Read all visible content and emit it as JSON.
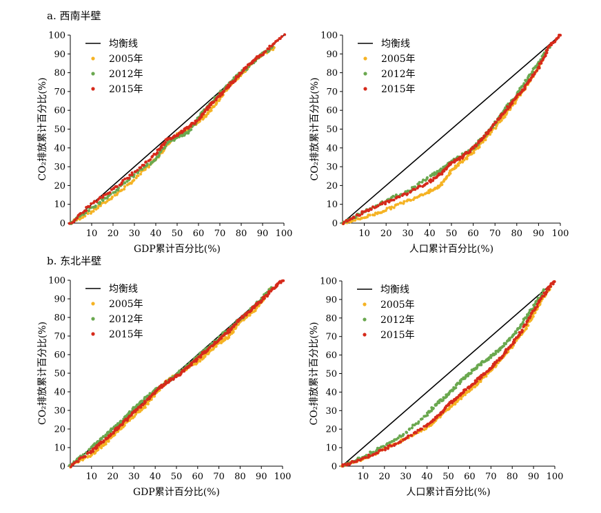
{
  "sections": [
    {
      "title": "a. 西南半壁"
    },
    {
      "title": "b. 东北半壁"
    }
  ],
  "colors": {
    "equality": "#000000",
    "y2005": "#f5b324",
    "y2012": "#6aa84f",
    "y2015": "#d62a1b"
  },
  "chart_data": [
    {
      "type": "scatter",
      "panel": "a-left",
      "xlabel": "GDP累计百分比(%)",
      "ylabel": "CO₂排放累计百分比(%)",
      "xlim": [
        0,
        100
      ],
      "ylim": [
        0,
        100
      ],
      "xticks": [
        "10",
        "20",
        "30",
        "40",
        "50",
        "60",
        "70",
        "80",
        "90",
        "100"
      ],
      "yticks": [
        "0",
        "10",
        "20",
        "30",
        "40",
        "50",
        "60",
        "70",
        "80",
        "90",
        "100"
      ],
      "legend": [
        "均衡线",
        "2005年",
        "2012年",
        "2015年"
      ],
      "series": [
        {
          "name": "均衡线",
          "x": [
            0,
            100
          ],
          "y": [
            0,
            100
          ]
        },
        {
          "name": "2005年",
          "x": [
            0,
            10,
            20,
            30,
            40,
            45,
            50,
            55,
            60,
            65,
            70,
            75,
            80,
            85,
            90,
            95
          ],
          "y": [
            0,
            6,
            14,
            23,
            34,
            41,
            47,
            50,
            54,
            59,
            66,
            74,
            79,
            85,
            90,
            93
          ]
        },
        {
          "name": "2012年",
          "x": [
            0,
            10,
            20,
            30,
            40,
            45,
            50,
            55,
            60,
            65,
            70,
            75,
            80,
            85,
            90,
            95
          ],
          "y": [
            0,
            8,
            16,
            26,
            34,
            42,
            46,
            48,
            56,
            63,
            69,
            75,
            80,
            85,
            90,
            94
          ]
        },
        {
          "name": "2015年",
          "x": [
            0,
            10,
            20,
            30,
            40,
            45,
            50,
            55,
            60,
            65,
            70,
            75,
            80,
            85,
            90,
            100
          ],
          "y": [
            0,
            10,
            18,
            27,
            37,
            44,
            47,
            51,
            55,
            62,
            68,
            74,
            80,
            86,
            90,
            100
          ]
        }
      ]
    },
    {
      "type": "scatter",
      "panel": "a-right",
      "xlabel": "人口累计百分比(%)",
      "ylabel": "CO₂排放累计百分比(%)",
      "xlim": [
        0,
        100
      ],
      "ylim": [
        0,
        100
      ],
      "xticks": [
        "10",
        "20",
        "30",
        "40",
        "50",
        "60",
        "70",
        "80",
        "90",
        "100"
      ],
      "yticks": [
        "0",
        "10",
        "20",
        "30",
        "40",
        "50",
        "60",
        "70",
        "80",
        "90",
        "100"
      ],
      "legend": [
        "均衡线",
        "2005年",
        "2012年",
        "2015年"
      ],
      "series": [
        {
          "name": "均衡线",
          "x": [
            0,
            100
          ],
          "y": [
            0,
            100
          ]
        },
        {
          "name": "2005年",
          "x": [
            0,
            10,
            20,
            30,
            40,
            45,
            50,
            55,
            60,
            65,
            70,
            75,
            80,
            85,
            90,
            95
          ],
          "y": [
            0,
            3,
            7,
            12,
            17,
            20,
            28,
            33,
            38,
            44,
            51,
            58,
            66,
            74,
            83,
            94
          ]
        },
        {
          "name": "2012年",
          "x": [
            0,
            10,
            20,
            30,
            40,
            45,
            50,
            55,
            60,
            65,
            70,
            75,
            80,
            85,
            90,
            95
          ],
          "y": [
            0,
            6,
            12,
            17,
            25,
            28,
            33,
            36,
            40,
            46,
            53,
            61,
            68,
            77,
            85,
            94
          ]
        },
        {
          "name": "2015年",
          "x": [
            0,
            10,
            20,
            30,
            40,
            45,
            50,
            55,
            60,
            65,
            70,
            75,
            80,
            85,
            90,
            95,
            100
          ],
          "y": [
            0,
            6,
            11,
            16,
            22,
            26,
            32,
            35,
            40,
            46,
            53,
            60,
            67,
            74,
            83,
            94,
            100
          ]
        }
      ]
    },
    {
      "type": "scatter",
      "panel": "b-left",
      "xlabel": "GDP累计百分比(%)",
      "ylabel": "CO₂排放累计百分比(%)",
      "xlim": [
        0,
        100
      ],
      "ylim": [
        0,
        100
      ],
      "xticks": [
        "10",
        "20",
        "30",
        "40",
        "50",
        "60",
        "70",
        "80",
        "90",
        "100"
      ],
      "yticks": [
        "0",
        "10",
        "20",
        "30",
        "40",
        "50",
        "60",
        "70",
        "80",
        "90",
        "100"
      ],
      "legend": [
        "均衡线",
        "2005年",
        "2012年",
        "2015年"
      ],
      "series": [
        {
          "name": "均衡线",
          "x": [
            0,
            100
          ],
          "y": [
            0,
            100
          ]
        },
        {
          "name": "2005年",
          "x": [
            0,
            10,
            15,
            20,
            25,
            30,
            35,
            40,
            45,
            50,
            55,
            60,
            65,
            70,
            75,
            80,
            85,
            90,
            95
          ],
          "y": [
            0,
            6,
            11,
            16,
            22,
            27,
            32,
            39,
            45,
            49,
            53,
            56,
            61,
            66,
            70,
            78,
            82,
            88,
            96
          ]
        },
        {
          "name": "2012年",
          "x": [
            0,
            10,
            15,
            20,
            25,
            30,
            35,
            40,
            45,
            50,
            55,
            60,
            65,
            70,
            75,
            80,
            85,
            90,
            95
          ],
          "y": [
            0,
            10,
            15,
            20,
            25,
            31,
            36,
            41,
            45,
            49,
            54,
            59,
            64,
            69,
            74,
            79,
            84,
            90,
            96
          ]
        },
        {
          "name": "2015年",
          "x": [
            0,
            10,
            15,
            20,
            25,
            30,
            35,
            40,
            45,
            50,
            55,
            60,
            65,
            70,
            75,
            80,
            85,
            90,
            95,
            100
          ],
          "y": [
            0,
            8,
            13,
            18,
            23,
            29,
            34,
            40,
            45,
            48,
            53,
            58,
            63,
            68,
            73,
            79,
            84,
            89,
            95,
            100
          ]
        }
      ]
    },
    {
      "type": "scatter",
      "panel": "b-right",
      "xlabel": "人口累计百分比(%)",
      "ylabel": "CO₂排放累计百分比(%)",
      "xlim": [
        0,
        100
      ],
      "ylim": [
        0,
        100
      ],
      "xticks": [
        "10",
        "20",
        "30",
        "40",
        "50",
        "60",
        "70",
        "80",
        "90",
        "100"
      ],
      "yticks": [
        "0",
        "10",
        "20",
        "30",
        "40",
        "50",
        "60",
        "70",
        "80",
        "90",
        "100"
      ],
      "legend": [
        "均衡线",
        "2005年",
        "2012年",
        "2015年"
      ],
      "series": [
        {
          "name": "均衡线",
          "x": [
            0,
            100
          ],
          "y": [
            0,
            100
          ]
        },
        {
          "name": "2005年",
          "x": [
            0,
            10,
            20,
            30,
            40,
            45,
            50,
            55,
            60,
            65,
            70,
            75,
            80,
            85,
            90,
            95,
            98
          ],
          "y": [
            0,
            4,
            9,
            15,
            21,
            26,
            31,
            36,
            41,
            46,
            52,
            58,
            65,
            72,
            82,
            92,
            97
          ]
        },
        {
          "name": "2012年",
          "x": [
            0,
            10,
            20,
            30,
            40,
            45,
            50,
            55,
            60,
            65,
            70,
            75,
            80,
            85,
            90,
            95
          ],
          "y": [
            0,
            5,
            11,
            18,
            28,
            34,
            39,
            45,
            50,
            55,
            59,
            64,
            70,
            78,
            86,
            95
          ]
        },
        {
          "name": "2015年",
          "x": [
            0,
            10,
            20,
            30,
            40,
            45,
            50,
            55,
            60,
            65,
            70,
            75,
            80,
            85,
            90,
            95,
            100
          ],
          "y": [
            0,
            4,
            9,
            15,
            22,
            27,
            33,
            38,
            43,
            48,
            53,
            59,
            66,
            74,
            84,
            93,
            100
          ]
        }
      ]
    }
  ]
}
